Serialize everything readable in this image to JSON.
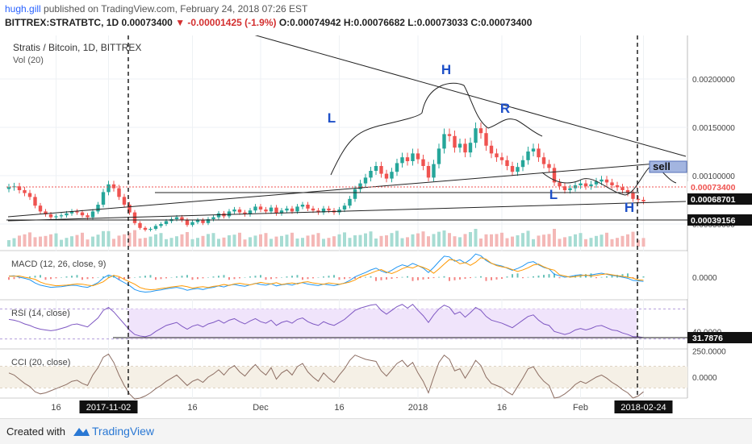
{
  "header": {
    "user": "hugh.gill",
    "published": "published on TradingView.com, February 24, 2018 07:26 EST",
    "symbol": "BITTREX:STRATBTC, 1D",
    "last": "0.00073400",
    "change": "▼ -0.00001425 (-1.9%)",
    "ohlc": "O:0.00074942 H:0.00076682 L:0.00073033 C:0.00073400"
  },
  "footer": {
    "created_with": "Created with",
    "brand": "TradingView"
  },
  "colors": {
    "up": "#26a69a",
    "down": "#ef5350",
    "rsi": "#7e57c2",
    "cci": "#8d6e63",
    "macd": "#2196f3",
    "signal": "#ff9800",
    "annot": "#1e50c8"
  },
  "chart_data": [
    {
      "type": "candlestick",
      "title": "Stratis / Bitcoin, 1D, BITTREX",
      "subtitle": "Vol (20)",
      "x_ticks": [
        "16",
        "2017-11-02",
        "16",
        "Dec",
        "16",
        "2018",
        "16",
        "Feb",
        "2018-02-24"
      ],
      "ylim": [
        0.00025,
        0.00245
      ],
      "y_ticks": [
        0.002,
        0.0015,
        0.001,
        0.0005
      ],
      "y_tick_labels": [
        "0.00200000",
        "0.00150000",
        "0.00100000",
        "0.00050000"
      ],
      "price_labels": [
        "0.00073400",
        "0.00068701",
        "0.00039156"
      ],
      "annotations": [
        "L",
        "H",
        "R",
        "L",
        "H",
        "sell"
      ],
      "close": [
        0.00088,
        0.00089,
        0.00085,
        0.00082,
        0.00078,
        0.00069,
        0.00063,
        0.0006,
        0.00057,
        0.00058,
        0.00059,
        0.00061,
        0.00063,
        0.00062,
        0.00059,
        0.00057,
        0.00063,
        0.0007,
        0.00083,
        0.00091,
        0.00087,
        0.00078,
        0.0007,
        0.00062,
        0.00051,
        0.00046,
        0.00044,
        0.00045,
        0.00048,
        0.0005,
        0.00053,
        0.00055,
        0.00057,
        0.00054,
        0.00049,
        0.00052,
        0.00054,
        0.00051,
        0.00055,
        0.00057,
        0.00061,
        0.00058,
        0.00063,
        0.00065,
        0.00062,
        0.0006,
        0.00064,
        0.00068,
        0.00065,
        0.00063,
        0.00067,
        0.00061,
        0.00064,
        0.00066,
        0.00063,
        0.00068,
        0.0007,
        0.00066,
        0.00064,
        0.00062,
        0.00066,
        0.00064,
        0.00062,
        0.00065,
        0.00069,
        0.00076,
        0.00086,
        0.00092,
        0.00098,
        0.00105,
        0.0011,
        0.00102,
        0.00097,
        0.00104,
        0.00113,
        0.00119,
        0.00115,
        0.00123,
        0.00117,
        0.0011,
        0.00098,
        0.00112,
        0.00128,
        0.00143,
        0.00141,
        0.00129,
        0.00133,
        0.00124,
        0.00134,
        0.00149,
        0.00144,
        0.00131,
        0.00123,
        0.00119,
        0.00116,
        0.0011,
        0.00104,
        0.00109,
        0.00116,
        0.00125,
        0.00128,
        0.00119,
        0.00112,
        0.00108,
        0.00093,
        0.00089,
        0.00085,
        0.00087,
        0.0009,
        0.00092,
        0.00089,
        0.00091,
        0.00094,
        0.00096,
        0.00093,
        0.0009,
        0.00088,
        0.00085,
        0.00082,
        0.00076,
        0.00075,
        0.000734
      ]
    },
    {
      "type": "line",
      "title": "MACD (12, 26, close, 9)",
      "y_tick_labels": [
        "0.0000"
      ]
    },
    {
      "type": "line",
      "title": "RSI (14, close)",
      "y_tick_labels": [
        "40.0000"
      ],
      "last_label": "31.7876",
      "values": [
        56,
        55,
        53,
        50,
        48,
        45,
        43,
        42,
        41,
        42,
        44,
        46,
        49,
        50,
        48,
        46,
        52,
        58,
        68,
        72,
        66,
        58,
        50,
        42,
        36,
        34,
        33,
        35,
        40,
        44,
        48,
        50,
        52,
        47,
        43,
        47,
        49,
        46,
        50,
        52,
        55,
        51,
        55,
        57,
        53,
        50,
        54,
        57,
        53,
        51,
        55,
        48,
        52,
        54,
        51,
        56,
        58,
        53,
        50,
        48,
        53,
        50,
        48,
        52,
        56,
        62,
        68,
        71,
        73,
        75,
        76,
        68,
        63,
        68,
        73,
        76,
        71,
        76,
        68,
        61,
        52,
        62,
        70,
        75,
        72,
        63,
        66,
        59,
        65,
        72,
        68,
        60,
        55,
        53,
        51,
        48,
        45,
        50,
        55,
        60,
        62,
        55,
        50,
        48,
        40,
        38,
        36,
        38,
        42,
        44,
        42,
        44,
        47,
        48,
        45,
        42,
        41,
        38,
        36,
        33,
        33,
        31.8
      ]
    },
    {
      "type": "line",
      "title": "CCI (20, close)",
      "y_tick_labels": [
        "250.0000",
        "0.0000"
      ],
      "values": [
        40,
        20,
        -20,
        -60,
        -90,
        -140,
        -160,
        -150,
        -130,
        -110,
        -90,
        -70,
        -40,
        -30,
        -60,
        -80,
        20,
        90,
        190,
        220,
        140,
        20,
        -80,
        -160,
        -210,
        -200,
        -180,
        -150,
        -110,
        -80,
        -40,
        -10,
        20,
        -30,
        -80,
        -40,
        -20,
        -50,
        0,
        30,
        70,
        20,
        80,
        110,
        50,
        10,
        70,
        120,
        60,
        20,
        90,
        -20,
        40,
        70,
        20,
        100,
        130,
        50,
        0,
        -40,
        40,
        -10,
        -50,
        20,
        80,
        160,
        210,
        190,
        170,
        160,
        150,
        60,
        10,
        70,
        130,
        160,
        100,
        140,
        40,
        -40,
        -150,
        0,
        140,
        210,
        170,
        60,
        80,
        -10,
        70,
        160,
        110,
        0,
        -60,
        -80,
        -100,
        -140,
        -170,
        -90,
        -10,
        80,
        100,
        20,
        -40,
        -80,
        -200,
        -190,
        -160,
        -120,
        -70,
        -40,
        -60,
        -30,
        0,
        20,
        -10,
        -50,
        -80,
        -120,
        -150,
        -200,
        -180,
        -140
      ]
    }
  ]
}
